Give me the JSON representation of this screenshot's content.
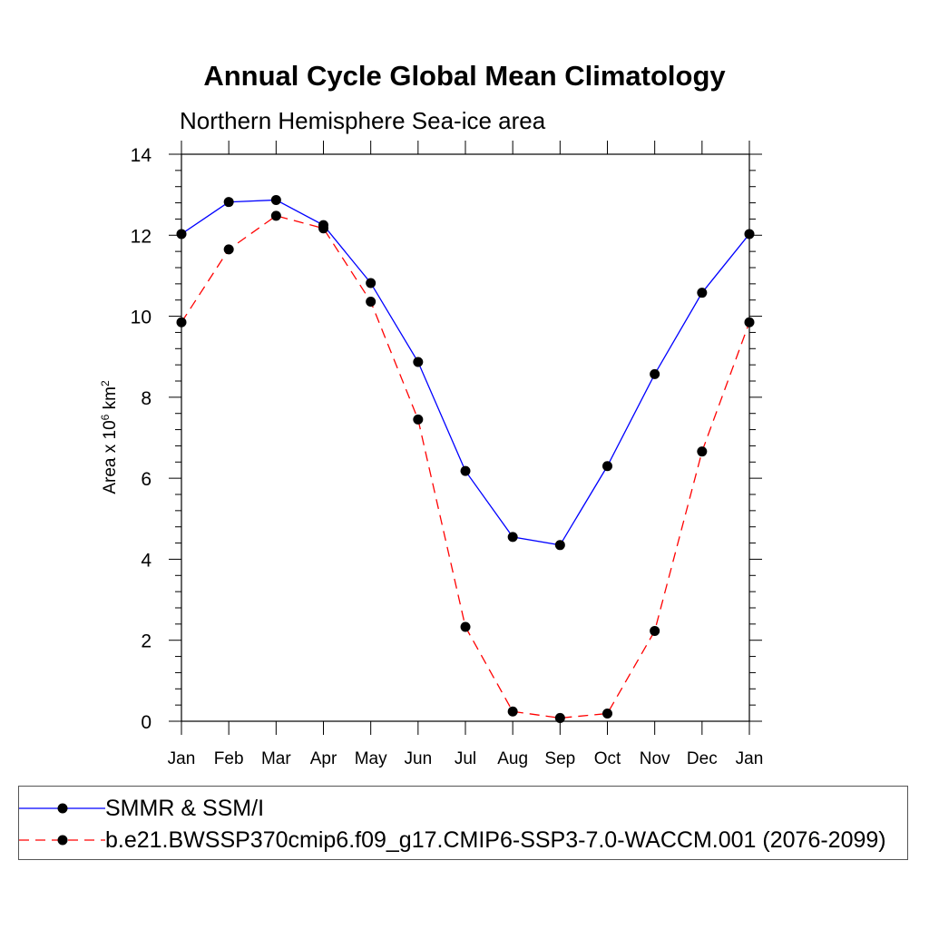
{
  "chart_data": {
    "type": "line",
    "title": "Annual Cycle Global Mean Climatology",
    "subtitle": "Northern Hemisphere Sea-ice area",
    "ylabel": {
      "prefix": "Area x 10",
      "exp1": "6",
      "mid": " km",
      "exp2": "2"
    },
    "xlabel": "",
    "categories": [
      "Jan",
      "Feb",
      "Mar",
      "Apr",
      "May",
      "Jun",
      "Jul",
      "Aug",
      "Sep",
      "Oct",
      "Nov",
      "Dec",
      "Jan"
    ],
    "ylim": [
      0,
      14
    ],
    "yticks": [
      0,
      2,
      4,
      6,
      8,
      10,
      12,
      14
    ],
    "grid": false,
    "legend_position": "bottom",
    "series": [
      {
        "name": "SMMR & SSM/I",
        "color": "#0000ff",
        "dash": "solid",
        "marker": "filled-circle",
        "values": [
          12.03,
          12.82,
          12.87,
          12.25,
          10.82,
          8.87,
          6.18,
          4.55,
          4.35,
          6.3,
          8.57,
          10.58,
          12.03
        ]
      },
      {
        "name": "b.e21.BWSSP370cmip6.f09_g17.CMIP6-SSP3-7.0-WACCM.001 (2076-2099)",
        "color": "#ff0000",
        "dash": "dashed",
        "marker": "filled-circle",
        "values": [
          9.85,
          11.65,
          12.48,
          12.17,
          10.36,
          7.45,
          2.33,
          0.24,
          0.08,
          0.19,
          2.23,
          6.66,
          9.85
        ]
      }
    ]
  }
}
